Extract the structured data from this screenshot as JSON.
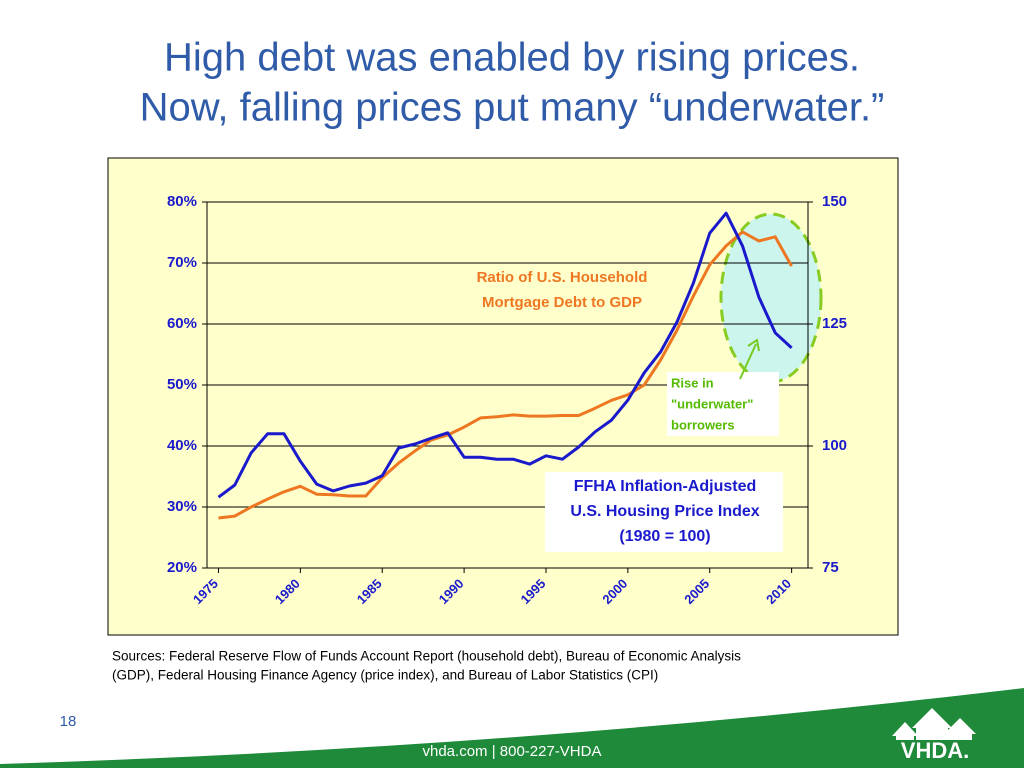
{
  "chart_data": {
    "type": "line",
    "title": [
      "High debt was enabled by rising prices.",
      "Now, falling prices put many “underwater.”"
    ],
    "x": [
      1975,
      1976,
      1977,
      1978,
      1979,
      1980,
      1981,
      1982,
      1983,
      1984,
      1985,
      1986,
      1987,
      1988,
      1989,
      1990,
      1991,
      1992,
      1993,
      1994,
      1995,
      1996,
      1997,
      1998,
      1999,
      2000,
      2001,
      2002,
      2003,
      2004,
      2005,
      2006,
      2007,
      2008,
      2009,
      2010
    ],
    "series": [
      {
        "color": "#ee7722",
        "axis": "y",
        "values": [
          28.2,
          28.5,
          30.0,
          31.3,
          32.5,
          33.4,
          32.1,
          32.0,
          31.8,
          31.8,
          34.8,
          37.2,
          39.2,
          41.0,
          41.8,
          43.1,
          44.6,
          44.8,
          45.1,
          44.9,
          44.9,
          45.0,
          45.0,
          46.2,
          47.5,
          48.4,
          50.0,
          54.1,
          59.0,
          64.6,
          69.7,
          72.8,
          75.1,
          73.6,
          74.3,
          69.5
        ]
      },
      {
        "color": "#1a1acc",
        "axis": "y2",
        "values": [
          89.5,
          92.0,
          98.6,
          102.5,
          102.5,
          96.9,
          92.2,
          90.8,
          91.8,
          92.4,
          93.9,
          99.6,
          100.4,
          101.6,
          102.7,
          97.7,
          97.7,
          97.3,
          97.3,
          96.3,
          98.0,
          97.3,
          99.8,
          102.9,
          105.3,
          109.4,
          115.0,
          119.3,
          125.4,
          133.4,
          143.6,
          147.7,
          141.0,
          130.5,
          123.2,
          120.1
        ]
      }
    ],
    "xlim": [
      1974.3,
      2011
    ],
    "xticks": [
      1975,
      1980,
      1985,
      1990,
      1995,
      2000,
      2005,
      2010
    ],
    "ylim": [
      20,
      80
    ],
    "yticks": [
      {
        "value": 20,
        "label": "20%"
      },
      {
        "value": 30,
        "label": "30%"
      },
      {
        "value": 40,
        "label": "40%"
      },
      {
        "value": 50,
        "label": "50%"
      },
      {
        "value": 60,
        "label": "60%"
      },
      {
        "value": 70,
        "label": "70%"
      },
      {
        "value": 80,
        "label": "80%"
      }
    ],
    "y2lim": [
      75,
      150
    ],
    "y2ticks": [
      75,
      100,
      125,
      150
    ],
    "grid": true,
    "annotations": {
      "debt": [
        "Ratio of U.S. Household",
        "Mortgage Debt to GDP"
      ],
      "price": [
        "FFHA Inflation-Adjusted",
        "U.S. Housing Price Index",
        "(1980 = 100)"
      ],
      "underwater": [
        "Rise in",
        "\"underwater\"",
        "borrowers"
      ]
    },
    "sources": [
      "Sources:  Federal Reserve Flow of Funds Account Report (household debt), Bureau of Economic Analysis",
      "(GDP), Federal Housing Finance Agency (price index), and Bureau of Labor Statistics (CPI)"
    ]
  },
  "slide": {
    "page_number": "18",
    "footer": "vhda.com | 800-227-VHDA",
    "logo": "VHDA."
  }
}
